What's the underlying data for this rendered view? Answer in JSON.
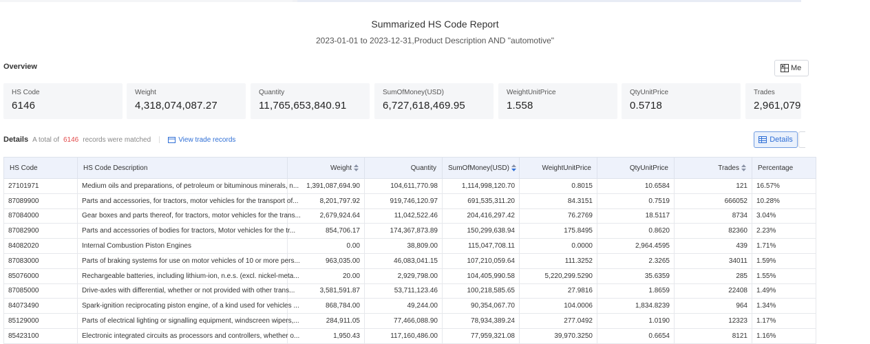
{
  "report": {
    "title": "Summarized HS Code Report",
    "subtitle": "2023-01-01 to 2023-12-31,Product Description AND \"automotive\""
  },
  "overview": {
    "label": "Overview",
    "menu_button_label": "Me",
    "cards": [
      {
        "label": "HS Code",
        "value": "6146"
      },
      {
        "label": "Weight",
        "value": "4,318,074,087.27"
      },
      {
        "label": "Quantity",
        "value": "11,765,653,840.91"
      },
      {
        "label": "SumOfMoney(USD)",
        "value": "6,727,618,469.95"
      },
      {
        "label": "WeightUnitPrice",
        "value": "1.558"
      },
      {
        "label": "QtyUnitPrice",
        "value": "0.5718"
      },
      {
        "label": "Trades",
        "value": "2,961,079"
      }
    ]
  },
  "details": {
    "label": "Details",
    "total_prefix": "A total of",
    "total_count": "6146",
    "total_suffix": "records were matched",
    "view_link": "View trade records",
    "details_button": "Details"
  },
  "table": {
    "headers": {
      "hs_code": "HS Code",
      "description": "HS Code Description",
      "weight": "Weight",
      "quantity": "Quantity",
      "sum_money": "SumOfMoney(USD)",
      "weight_unit_price": "WeightUnitPrice",
      "qty_unit_price": "QtyUnitPrice",
      "trades": "Trades",
      "percentage": "Percentage"
    },
    "rows": [
      {
        "hs_code": "27101971",
        "description": "Medium oils and preparations, of petroleum or bituminous minerals, n...",
        "weight": "1,391,087,694.90",
        "quantity": "104,611,770.98",
        "sum_money": "1,114,998,120.70",
        "weight_unit_price": "0.8015",
        "qty_unit_price": "10.6584",
        "trades": "121",
        "percentage": "16.57%"
      },
      {
        "hs_code": "87089900",
        "description": "Parts and accessories, for tractors, motor vehicles for the transport of...",
        "weight": "8,201,797.92",
        "quantity": "919,746,120.97",
        "sum_money": "691,535,311.20",
        "weight_unit_price": "84.3151",
        "qty_unit_price": "0.7519",
        "trades": "666052",
        "percentage": "10.28%"
      },
      {
        "hs_code": "87084000",
        "description": "Gear boxes and parts thereof, for tractors, motor vehicles for the trans...",
        "weight": "2,679,924.64",
        "quantity": "11,042,522.46",
        "sum_money": "204,416,297.42",
        "weight_unit_price": "76.2769",
        "qty_unit_price": "18.5117",
        "trades": "8734",
        "percentage": "3.04%"
      },
      {
        "hs_code": "87082900",
        "description": "Parts and accessories of bodies for tractors, Motor vehicles for the tr...",
        "weight": "854,706.17",
        "quantity": "174,367,873.89",
        "sum_money": "150,299,638.94",
        "weight_unit_price": "175.8495",
        "qty_unit_price": "0.8620",
        "trades": "82360",
        "percentage": "2.23%"
      },
      {
        "hs_code": "84082020",
        "description": "Internal Combustion Piston Engines",
        "weight": "0.00",
        "quantity": "38,809.00",
        "sum_money": "115,047,708.11",
        "weight_unit_price": "0.0000",
        "qty_unit_price": "2,964.4595",
        "trades": "439",
        "percentage": "1.71%"
      },
      {
        "hs_code": "87083000",
        "description": "Parts of braking systems for use on motor vehicles of 10 or more pers...",
        "weight": "963,035.00",
        "quantity": "46,083,041.15",
        "sum_money": "107,210,059.64",
        "weight_unit_price": "111.3252",
        "qty_unit_price": "2.3265",
        "trades": "34011",
        "percentage": "1.59%"
      },
      {
        "hs_code": "85076000",
        "description": "Rechargeable batteries, including lithium-ion, n.e.s. (excl. nickel-meta...",
        "weight": "20.00",
        "quantity": "2,929,798.00",
        "sum_money": "104,405,990.58",
        "weight_unit_price": "5,220,299.5290",
        "qty_unit_price": "35.6359",
        "trades": "285",
        "percentage": "1.55%"
      },
      {
        "hs_code": "87085000",
        "description": "Drive-axles with differential, whether or not provided with other trans...",
        "weight": "3,581,591.87",
        "quantity": "53,711,123.46",
        "sum_money": "100,218,585.65",
        "weight_unit_price": "27.9816",
        "qty_unit_price": "1.8659",
        "trades": "22408",
        "percentage": "1.49%"
      },
      {
        "hs_code": "84073490",
        "description": "Spark-ignition reciprocating piston engine, of a kind used for vehicles ...",
        "weight": "868,784.00",
        "quantity": "49,244.00",
        "sum_money": "90,354,067.70",
        "weight_unit_price": "104.0006",
        "qty_unit_price": "1,834.8239",
        "trades": "964",
        "percentage": "1.34%"
      },
      {
        "hs_code": "85129000",
        "description": "Parts of electrical lighting or signalling equipment, windscreen wipers,...",
        "weight": "284,911.05",
        "quantity": "77,466,088.90",
        "sum_money": "78,934,389.24",
        "weight_unit_price": "277.0492",
        "qty_unit_price": "1.0190",
        "trades": "12323",
        "percentage": "1.17%"
      },
      {
        "hs_code": "85423100",
        "description": "Electronic integrated circuits as processors and controllers, whether o...",
        "weight": "1,950.43",
        "quantity": "117,160,486.00",
        "sum_money": "77,959,321.08",
        "weight_unit_price": "39,970.3250",
        "qty_unit_price": "0.6654",
        "trades": "8121",
        "percentage": "1.16%"
      }
    ]
  }
}
